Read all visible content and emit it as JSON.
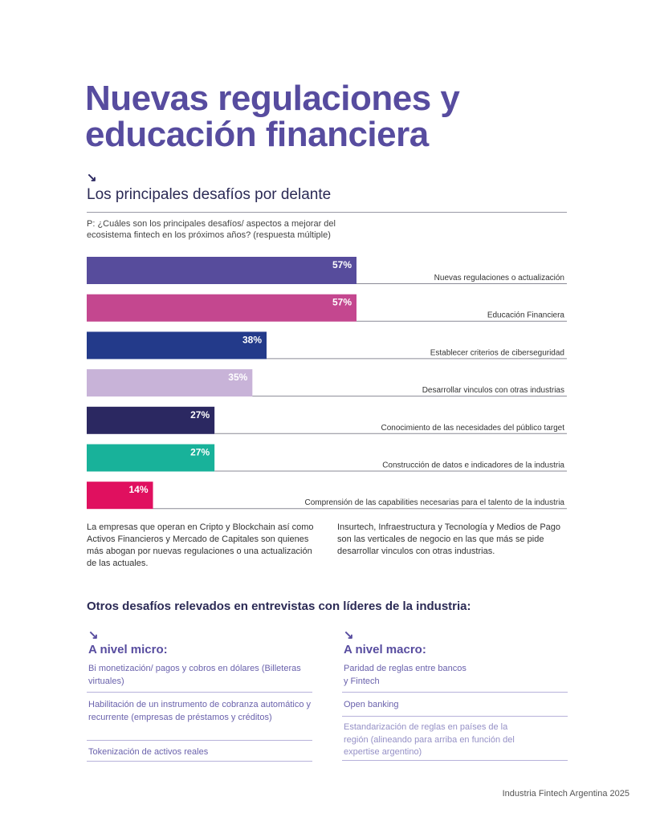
{
  "title": "Nuevas regulaciones y educación financiera",
  "arrow_icon": "↘",
  "subtitle": "Los principales desafíos por delante",
  "question": "P: ¿Cuáles son los principales desafíos/ aspectos a mejorar del ecosistema fintech en los próximos años? (respuesta múltiple)",
  "chart_data": {
    "type": "bar",
    "orientation": "horizontal",
    "categories": [
      "Nuevas regulaciones o actualización",
      "Educación Financiera",
      "Establecer criterios de ciberseguridad",
      "Desarrollar vinculos con otras industrias",
      "Conocimiento de las necesidades del público target",
      "Construcción de datos e indicadores de la industria",
      "Comprensión de las capabilities necesarias para el talento de la industria"
    ],
    "values": [
      57,
      57,
      38,
      35,
      27,
      27,
      14
    ],
    "labels": [
      "57%",
      "57%",
      "38%",
      "35%",
      "27%",
      "27%",
      "14%"
    ],
    "colors": [
      "#574c9c",
      "#c4478f",
      "#233a8a",
      "#c8b3d8",
      "#2b2861",
      "#18b29a",
      "#e0105f"
    ],
    "xlim": [
      0,
      100
    ]
  },
  "notes": [
    "La empresas que operan en Cripto y Blockchain así como Activos Financieros y Mercado de Capitales son quienes más abogan por nuevas regulaciones o una actualización de las actuales.",
    "Insurtech, Infraestructura y Tecnología y Medios de Pago son las verticales de negocio en las que más se pide desarrollar vinculos con otras industrias."
  ],
  "others_title": "Otros desafíos relevados en entrevistas con líderes de la industria:",
  "micro": {
    "title": "A nivel micro:",
    "items": [
      "Bi monetización/ pagos y cobros en dólares (Billeteras virtuales)",
      "Habilitación de un instrumento de cobranza automático y recurrente (empresas de préstamos y créditos)",
      "Tokenización de activos reales"
    ]
  },
  "macro": {
    "title": "A nivel macro:",
    "items": [
      "Paridad de reglas entre bancos y Fintech",
      "Open banking",
      "Estandarización de reglas en países de la región (alineando para arriba en función del expertise argentino)"
    ]
  },
  "footer": "Industria Fintech Argentina 2025"
}
